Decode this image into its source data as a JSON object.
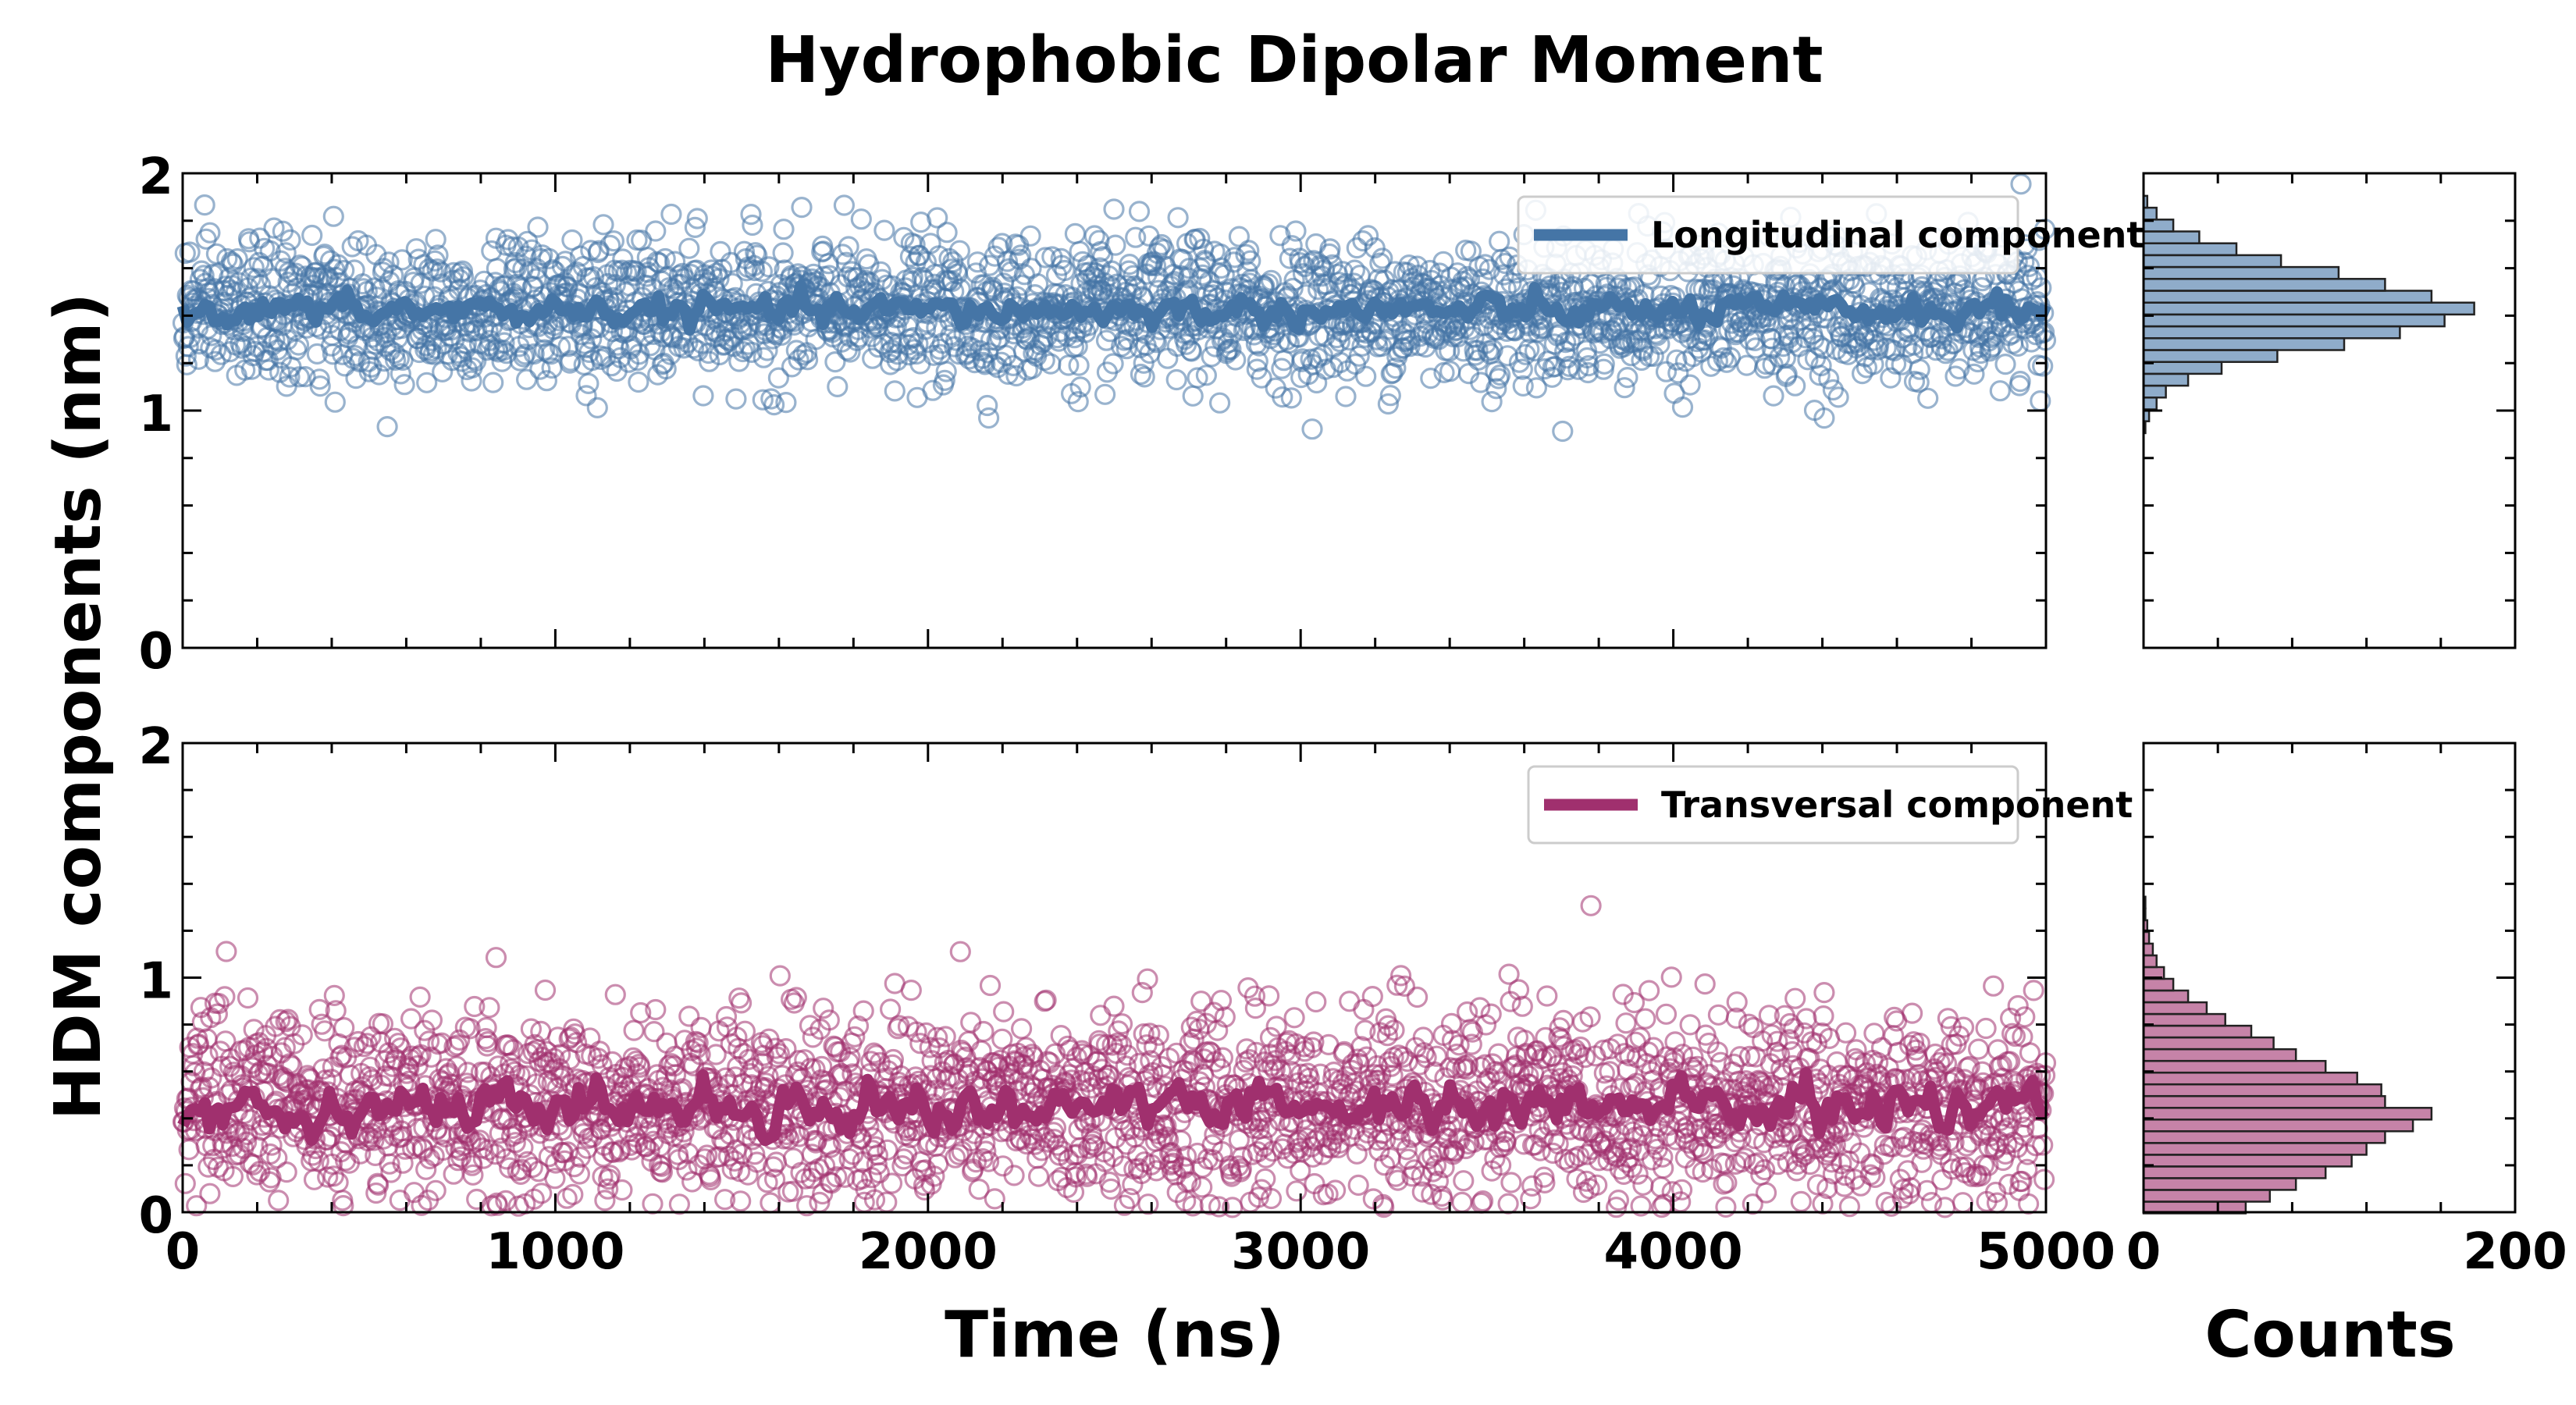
{
  "chart_data": {
    "type": "scatter",
    "title": "Hydrophobic Dipolar Moment",
    "ylabel": "HDM components (nm)",
    "xlabel": "Time (ns)",
    "hist_xlabel": "Counts",
    "xlim": [
      0,
      5000
    ],
    "ylim": [
      0,
      2
    ],
    "hist_xlim": [
      0,
      200
    ],
    "x_ticks": [
      "0",
      "1000",
      "2000",
      "3000",
      "4000",
      "5000"
    ],
    "y_ticks": [
      "0",
      "1",
      "2"
    ],
    "hist_ticks": [
      "0",
      "200"
    ],
    "legend_position": "top-right",
    "grid": false,
    "series": [
      {
        "name": "Longitudinal component",
        "color": "#4575a6",
        "mean": 1.42,
        "spread": 0.15,
        "running_mean_spread": 0.05,
        "histogram": {
          "bin_centers": [
            0.93,
            0.98,
            1.03,
            1.08,
            1.13,
            1.18,
            1.23,
            1.28,
            1.33,
            1.38,
            1.43,
            1.48,
            1.53,
            1.58,
            1.63,
            1.68,
            1.73,
            1.78,
            1.83,
            1.88
          ],
          "counts": [
            1,
            3,
            7,
            12,
            24,
            42,
            72,
            108,
            138,
            162,
            178,
            155,
            130,
            105,
            74,
            50,
            30,
            16,
            7,
            2
          ]
        }
      },
      {
        "name": "Transversal component",
        "color": "#a0306e",
        "mean": 0.45,
        "spread": 0.2,
        "running_mean_spread": 0.08,
        "histogram": {
          "bin_centers": [
            0.02,
            0.07,
            0.12,
            0.17,
            0.22,
            0.27,
            0.32,
            0.37,
            0.42,
            0.47,
            0.52,
            0.57,
            0.62,
            0.67,
            0.72,
            0.77,
            0.82,
            0.87,
            0.92,
            0.97,
            1.02,
            1.07,
            1.12,
            1.17,
            1.22,
            1.27,
            1.32
          ],
          "counts": [
            55,
            68,
            82,
            98,
            112,
            120,
            130,
            145,
            155,
            130,
            128,
            115,
            98,
            82,
            70,
            58,
            44,
            34,
            24,
            16,
            11,
            7,
            5,
            3,
            2,
            1,
            1
          ]
        }
      }
    ]
  }
}
